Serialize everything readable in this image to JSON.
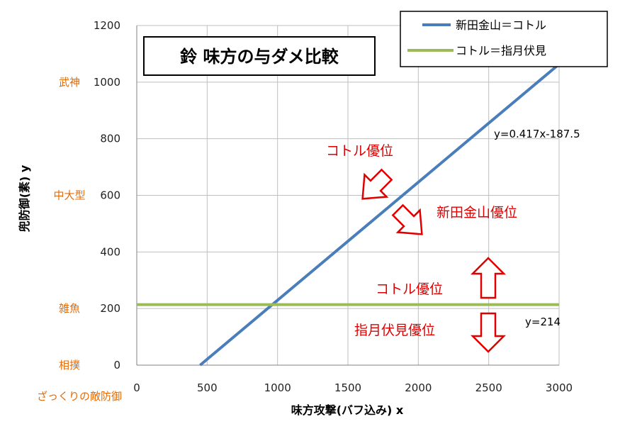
{
  "chart_data": {
    "type": "line",
    "title": "鈴 味方の与ダメ比較",
    "xlabel": "味方攻撃(バフ込み) x",
    "ylabel": "兜防御(素) y",
    "xlim": [
      0,
      3000
    ],
    "ylim": [
      0,
      1200
    ],
    "x_ticks": [
      0,
      500,
      1000,
      1500,
      2000,
      2500,
      3000
    ],
    "y_ticks": [
      0,
      200,
      400,
      600,
      800,
      1000,
      1200
    ],
    "grid": true,
    "legend_position": "top-right",
    "series": [
      {
        "name": "新田金山＝コトル",
        "color": "#4a7ebb",
        "x": [
          450,
          3000
        ],
        "y": [
          0,
          1063.5
        ]
      },
      {
        "name": "コトル＝指月伏見",
        "color": "#9bbb59",
        "x": [
          0,
          3000
        ],
        "y": [
          214,
          214
        ]
      }
    ],
    "y_categories": [
      {
        "label": "武神",
        "y": 1000
      },
      {
        "label": "中大型",
        "y": 600
      },
      {
        "label": "雑魚",
        "y": 200
      },
      {
        "label": "相撲",
        "y": 0
      }
    ],
    "y_category_caption": "ざっくりの敵防御",
    "annotations": {
      "blue_equation": "y=0.417x-187.5",
      "green_equation": "y=214",
      "upper_left_region": "コトル優位",
      "upper_right_region": "新田金山優位",
      "middle_region": "コトル優位",
      "lower_region": "指月伏見優位"
    },
    "colors": {
      "category_label": "#e36c09",
      "annotation": "#e00000",
      "arrow": "#e00000"
    }
  }
}
